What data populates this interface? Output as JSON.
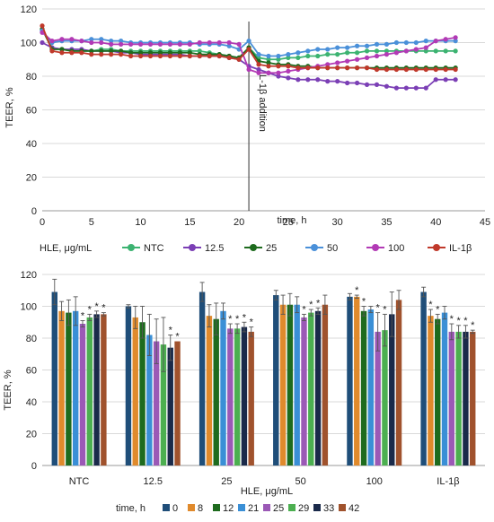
{
  "chart_data": [
    {
      "type": "line",
      "xlabel": "time, h",
      "ylabel": "TEER, %",
      "xlim": [
        0,
        45
      ],
      "ylim": [
        0,
        120
      ],
      "x_ticks": [
        "0",
        "5",
        "10",
        "15",
        "20",
        "25",
        "30",
        "35",
        "40",
        "45"
      ],
      "y_ticks": [
        "0",
        "20",
        "40",
        "60",
        "80",
        "100",
        "120"
      ],
      "annotation": {
        "text": "IL-1β addition",
        "x": 21
      },
      "legend_title": "HLE, μg/mL",
      "legend_position": "bottom",
      "x": [
        0,
        1,
        2,
        3,
        4,
        5,
        6,
        7,
        8,
        9,
        10,
        11,
        12,
        13,
        14,
        15,
        16,
        17,
        18,
        19,
        20,
        21,
        22,
        23,
        24,
        25,
        26,
        27,
        28,
        29,
        30,
        31,
        32,
        33,
        34,
        35,
        36,
        37,
        38,
        39,
        40,
        41,
        42
      ],
      "series": [
        {
          "name": "NTC",
          "color": "#3cb371",
          "values": [
            108,
            97,
            96,
            95,
            95,
            95,
            96,
            96,
            95,
            95,
            95,
            95,
            95,
            95,
            95,
            95,
            95,
            94,
            93,
            92,
            91,
            97,
            91,
            90,
            90,
            91,
            91,
            92,
            92,
            93,
            93,
            94,
            94,
            95,
            95,
            95,
            95,
            95,
            95,
            95,
            95,
            95,
            95
          ]
        },
        {
          "name": "12.5",
          "color": "#7b3fb5",
          "values": [
            100,
            97,
            96,
            96,
            96,
            95,
            95,
            95,
            94,
            94,
            93,
            93,
            93,
            93,
            93,
            92,
            92,
            92,
            92,
            91,
            90,
            86,
            84,
            82,
            80,
            79,
            78,
            78,
            78,
            77,
            77,
            76,
            76,
            75,
            75,
            74,
            73,
            73,
            73,
            73,
            78,
            78,
            78
          ]
        },
        {
          "name": "25",
          "color": "#1e6b1e",
          "values": [
            108,
            96,
            96,
            95,
            95,
            95,
            95,
            95,
            95,
            94,
            94,
            94,
            94,
            94,
            94,
            94,
            93,
            93,
            93,
            92,
            91,
            97,
            89,
            88,
            87,
            87,
            86,
            86,
            85,
            85,
            85,
            85,
            85,
            85,
            85,
            85,
            85,
            85,
            85,
            85,
            85,
            85,
            85
          ]
        },
        {
          "name": "50",
          "color": "#4a90d9",
          "values": [
            107,
            100,
            101,
            101,
            101,
            102,
            102,
            101,
            101,
            100,
            100,
            100,
            100,
            100,
            100,
            100,
            99,
            99,
            99,
            98,
            96,
            101,
            93,
            92,
            92,
            93,
            94,
            95,
            96,
            96,
            97,
            97,
            98,
            98,
            99,
            99,
            100,
            100,
            100,
            101,
            101,
            101,
            101
          ]
        },
        {
          "name": "100",
          "color": "#b23ab5",
          "values": [
            106,
            101,
            102,
            102,
            101,
            100,
            100,
            99,
            99,
            99,
            99,
            99,
            99,
            99,
            99,
            99,
            100,
            100,
            100,
            100,
            99,
            84,
            82,
            82,
            82,
            83,
            84,
            85,
            86,
            87,
            88,
            89,
            90,
            91,
            92,
            93,
            94,
            95,
            96,
            97,
            101,
            102,
            103
          ]
        },
        {
          "name": "IL-1β",
          "color": "#c0392b",
          "values": [
            110,
            95,
            94,
            94,
            94,
            93,
            93,
            93,
            93,
            92,
            92,
            92,
            92,
            92,
            92,
            92,
            92,
            92,
            92,
            91,
            90,
            96,
            87,
            86,
            86,
            86,
            85,
            85,
            85,
            85,
            85,
            85,
            85,
            85,
            84,
            84,
            84,
            84,
            84,
            84,
            84,
            84,
            84
          ]
        }
      ]
    },
    {
      "type": "bar",
      "xlabel": "HLE, μg/mL",
      "ylabel": "TEER, %",
      "ylim": [
        0,
        120
      ],
      "y_ticks": [
        "0",
        "20",
        "40",
        "60",
        "80",
        "100",
        "120"
      ],
      "legend_title": "time, h",
      "legend_position": "bottom",
      "categories": [
        "NTC",
        "12.5",
        "25",
        "50",
        "100",
        "IL-1β"
      ],
      "series": [
        {
          "name": "0",
          "color": "#1f4e79",
          "values": [
            109,
            100,
            109,
            107,
            106,
            109
          ],
          "errors": [
            8,
            1,
            6,
            3,
            2,
            3
          ]
        },
        {
          "name": "8",
          "color": "#e08a2c",
          "values": [
            97,
            93,
            94,
            101,
            106,
            94
          ],
          "errors": [
            6,
            7,
            7,
            6,
            1,
            4
          ]
        },
        {
          "name": "12",
          "color": "#1e6b1e",
          "values": [
            96,
            90,
            92,
            101,
            97,
            92
          ],
          "errors": [
            8,
            10,
            10,
            7,
            3,
            3
          ]
        },
        {
          "name": "21",
          "color": "#3a8fd6",
          "values": [
            97,
            82,
            97,
            101,
            98,
            96
          ],
          "errors": [
            9,
            13,
            5,
            5,
            2,
            4
          ]
        },
        {
          "name": "25",
          "color": "#9b59b6",
          "values": [
            89,
            78,
            86,
            93,
            84,
            84
          ],
          "errors": [
            2,
            14,
            3,
            2,
            12,
            5
          ]
        },
        {
          "name": "29",
          "color": "#4caf50",
          "values": [
            93,
            76,
            86,
            96,
            85,
            84
          ],
          "errors": [
            2,
            17,
            3,
            2,
            10,
            4
          ]
        },
        {
          "name": "33",
          "color": "#1a2a4a",
          "values": [
            95,
            74,
            87,
            97,
            95,
            84
          ],
          "errors": [
            2,
            8,
            3,
            2,
            14,
            4
          ]
        },
        {
          "name": "42",
          "color": "#a0522d",
          "values": [
            95,
            78,
            84,
            101,
            104,
            84
          ],
          "errors": [
            1,
            0,
            3,
            6,
            6,
            1
          ]
        }
      ],
      "significance_marker": "*",
      "significant": [
        [
          false,
          false,
          false,
          false,
          true,
          true,
          true,
          true
        ],
        [
          false,
          false,
          false,
          false,
          false,
          false,
          true,
          true
        ],
        [
          false,
          false,
          false,
          false,
          true,
          true,
          true,
          true
        ],
        [
          false,
          false,
          false,
          false,
          true,
          true,
          true,
          false
        ],
        [
          false,
          true,
          true,
          false,
          true,
          true,
          false,
          false
        ],
        [
          false,
          true,
          true,
          false,
          true,
          true,
          true,
          true
        ]
      ]
    }
  ]
}
